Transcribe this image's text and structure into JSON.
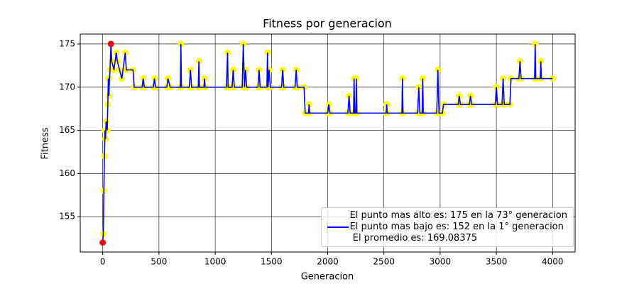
{
  "chart_data": {
    "type": "line",
    "title": "Fitness por generacion",
    "x_label": "Generacion",
    "y_label": "Fitness",
    "xlim": [
      -200,
      4200
    ],
    "ylim": [
      150.9,
      176.15
    ],
    "xticks": [
      0,
      500,
      1000,
      1500,
      2000,
      2500,
      3000,
      3500,
      4000
    ],
    "yticks": [
      155,
      160,
      165,
      170,
      175
    ],
    "grid": true,
    "legend": "lower right",
    "series": [
      {
        "name": "El punto mas alto es: 175 en la 73° generacion\nEl punto mas bajo es: 152 en la 1° generacion\n El promedio es: 169.08375",
        "color": "#0000ff",
        "marker_color": "#ffff00",
        "x": [
          0,
          5,
          10,
          15,
          20,
          25,
          30,
          40,
          45,
          50,
          55,
          60,
          65,
          73,
          80,
          100,
          120,
          130,
          150,
          170,
          200,
          210,
          270,
          280,
          350,
          360,
          370,
          450,
          460,
          470,
          570,
          580,
          600,
          690,
          695,
          700,
          770,
          780,
          790,
          850,
          855,
          860,
          900,
          905,
          910,
          1100,
          1110,
          1115,
          1150,
          1160,
          1170,
          1240,
          1250,
          1260,
          1270,
          1280,
          1380,
          1390,
          1400,
          1460,
          1465,
          1470,
          1480,
          1490,
          1590,
          1600,
          1610,
          1710,
          1720,
          1730,
          1790,
          1800,
          1830,
          1835,
          1840,
          2000,
          2010,
          2020,
          2180,
          2190,
          2200,
          2230,
          2235,
          2240,
          2250,
          2255,
          2260,
          2520,
          2525,
          2530,
          2660,
          2665,
          2670,
          2800,
          2810,
          2820,
          2840,
          2845,
          2850,
          2970,
          2980,
          2990,
          3020,
          3030,
          3160,
          3170,
          3180,
          3260,
          3270,
          3280,
          3490,
          3500,
          3510,
          3550,
          3560,
          3570,
          3620,
          3630,
          3700,
          3710,
          3720,
          3840,
          3845,
          3850,
          3890,
          3895,
          3900,
          4000
        ],
        "values": [
          152,
          153,
          158,
          162,
          165,
          164,
          166,
          165,
          168,
          171,
          169,
          171,
          172,
          175,
          173,
          172,
          174,
          173,
          172,
          171,
          174,
          172,
          172,
          170,
          170,
          171,
          170,
          170,
          171,
          170,
          170,
          171,
          170,
          170,
          175,
          170,
          170,
          172,
          170,
          170,
          173,
          170,
          170,
          171,
          170,
          170,
          174,
          170,
          170,
          172,
          170,
          170,
          175,
          170,
          172,
          170,
          170,
          172,
          170,
          170,
          174,
          170,
          172,
          170,
          170,
          172,
          170,
          170,
          172,
          170,
          170,
          167,
          167,
          168,
          167,
          167,
          168,
          167,
          167,
          169,
          167,
          167,
          171,
          167,
          167,
          171,
          167,
          167,
          168,
          167,
          167,
          171,
          167,
          167,
          170,
          167,
          167,
          171,
          167,
          167,
          172,
          167,
          167,
          168,
          168,
          169,
          168,
          168,
          169,
          168,
          168,
          170,
          168,
          168,
          171,
          168,
          168,
          171,
          171,
          173,
          171,
          171,
          175,
          171,
          171,
          173,
          171,
          171
        ]
      }
    ],
    "highlights": {
      "color": "#e0101a",
      "x": [
        73,
        0
      ],
      "values": [
        175,
        152
      ]
    }
  }
}
